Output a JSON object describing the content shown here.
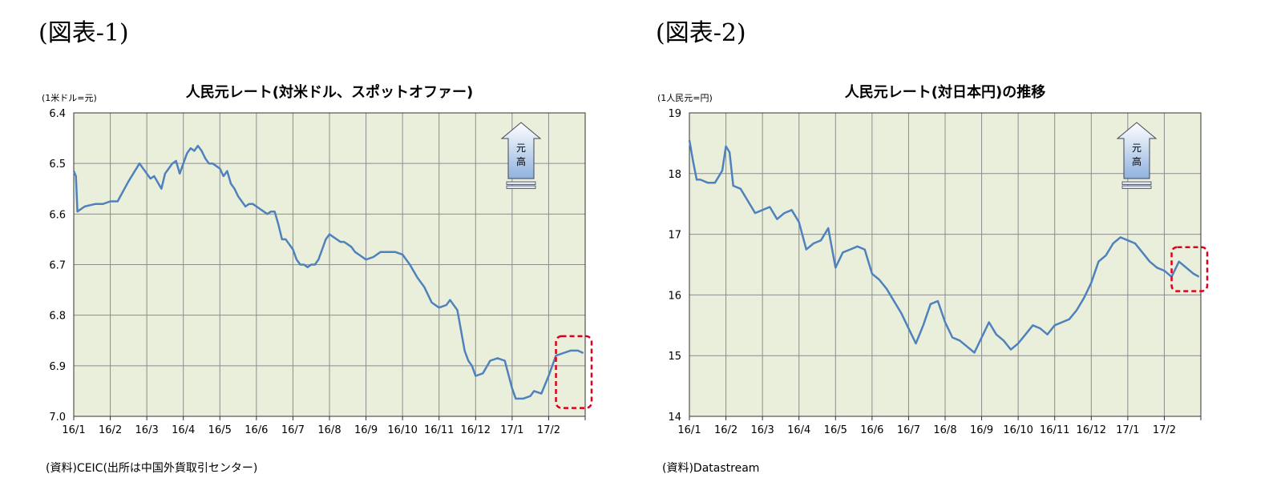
{
  "figures": [
    {
      "label": "(図表-1)",
      "source": "(資料)CEIC(出所は中国外貨取引センター)",
      "arrow_label": "元\n高",
      "chart_data": {
        "type": "line",
        "title": "人民元レート(対米ドル、スポットオファー)",
        "unit_label": "(1米ドル=元)",
        "y_inverted": true,
        "ylim": [
          6.4,
          7.0
        ],
        "y_ticks": [
          6.4,
          6.5,
          6.6,
          6.7,
          6.8,
          6.9,
          7.0
        ],
        "y_tick_labels": [
          "6.4",
          "6.5",
          "6.6",
          "6.7",
          "6.8",
          "6.9",
          "7.0"
        ],
        "x_ticks": [
          "16/1",
          "16/2",
          "16/3",
          "16/4",
          "16/5",
          "16/6",
          "16/7",
          "16/8",
          "16/9",
          "16/10",
          "16/11",
          "16/12",
          "17/1",
          "17/2"
        ],
        "grid": true,
        "highlight_box": true,
        "x_month_index": [
          0,
          0.06,
          0.1,
          0.3,
          0.6,
          0.8,
          1.0,
          1.2,
          1.5,
          1.8,
          2.0,
          2.1,
          2.2,
          2.4,
          2.5,
          2.6,
          2.7,
          2.8,
          2.9,
          3.0,
          3.1,
          3.2,
          3.3,
          3.4,
          3.5,
          3.6,
          3.7,
          3.8,
          3.9,
          4.0,
          4.1,
          4.2,
          4.3,
          4.4,
          4.5,
          4.6,
          4.7,
          4.8,
          4.9,
          5.0,
          5.1,
          5.2,
          5.3,
          5.4,
          5.5,
          5.6,
          5.7,
          5.8,
          5.9,
          6.0,
          6.1,
          6.2,
          6.3,
          6.4,
          6.5,
          6.6,
          6.7,
          6.8,
          6.9,
          7.0,
          7.1,
          7.2,
          7.3,
          7.4,
          7.5,
          7.6,
          7.7,
          7.8,
          7.9,
          8.0,
          8.2,
          8.4,
          8.6,
          8.8,
          9.0,
          9.2,
          9.4,
          9.6,
          9.8,
          10.0,
          10.2,
          10.3,
          10.5,
          10.6,
          10.7,
          10.8,
          10.9,
          11.0,
          11.2,
          11.4,
          11.6,
          11.8,
          12.0,
          12.1,
          12.3,
          12.5,
          12.6,
          12.8,
          13.0,
          13.2,
          13.4,
          13.6,
          13.8,
          13.95
        ],
        "values": [
          6.515,
          6.525,
          6.595,
          6.585,
          6.58,
          6.58,
          6.575,
          6.575,
          6.535,
          6.5,
          6.52,
          6.53,
          6.525,
          6.55,
          6.52,
          6.51,
          6.5,
          6.495,
          6.52,
          6.5,
          6.48,
          6.47,
          6.475,
          6.465,
          6.475,
          6.49,
          6.5,
          6.5,
          6.505,
          6.51,
          6.525,
          6.515,
          6.54,
          6.55,
          6.565,
          6.575,
          6.585,
          6.58,
          6.58,
          6.585,
          6.59,
          6.595,
          6.6,
          6.595,
          6.595,
          6.62,
          6.65,
          6.65,
          6.66,
          6.67,
          6.69,
          6.7,
          6.7,
          6.705,
          6.7,
          6.7,
          6.69,
          6.67,
          6.65,
          6.64,
          6.645,
          6.65,
          6.655,
          6.655,
          6.66,
          6.665,
          6.675,
          6.68,
          6.685,
          6.69,
          6.685,
          6.675,
          6.675,
          6.675,
          6.68,
          6.7,
          6.725,
          6.745,
          6.775,
          6.785,
          6.78,
          6.77,
          6.79,
          6.83,
          6.87,
          6.89,
          6.9,
          6.92,
          6.915,
          6.89,
          6.885,
          6.89,
          6.945,
          6.965,
          6.965,
          6.96,
          6.95,
          6.955,
          6.92,
          6.88,
          6.875,
          6.87,
          6.87,
          6.875
        ]
      }
    },
    {
      "label": "(図表-2)",
      "source": "(資料)Datastream",
      "arrow_label": "元\n高",
      "chart_data": {
        "type": "line",
        "title": "人民元レート(対日本円)の推移",
        "unit_label": "(1人民元=円)",
        "y_inverted": false,
        "ylim": [
          14,
          19
        ],
        "y_ticks": [
          14,
          15,
          16,
          17,
          18,
          19
        ],
        "y_tick_labels": [
          "14",
          "15",
          "16",
          "17",
          "18",
          "19"
        ],
        "x_ticks": [
          "16/1",
          "16/2",
          "16/3",
          "16/4",
          "16/5",
          "16/6",
          "16/7",
          "16/8",
          "16/9",
          "16/10",
          "16/11",
          "16/12",
          "17/1",
          "17/2"
        ],
        "grid": true,
        "highlight_box": true,
        "x_month_index": [
          0,
          0.1,
          0.2,
          0.3,
          0.5,
          0.7,
          0.8,
          0.9,
          1.0,
          1.1,
          1.2,
          1.4,
          1.6,
          1.8,
          2.0,
          2.2,
          2.4,
          2.6,
          2.8,
          3.0,
          3.2,
          3.4,
          3.6,
          3.8,
          4.0,
          4.2,
          4.4,
          4.6,
          4.8,
          5.0,
          5.2,
          5.4,
          5.6,
          5.8,
          6.0,
          6.2,
          6.4,
          6.6,
          6.8,
          7.0,
          7.2,
          7.4,
          7.6,
          7.8,
          8.0,
          8.2,
          8.4,
          8.6,
          8.8,
          9.0,
          9.2,
          9.4,
          9.6,
          9.8,
          10.0,
          10.2,
          10.4,
          10.6,
          10.8,
          11.0,
          11.2,
          11.4,
          11.6,
          11.8,
          12.0,
          12.2,
          12.4,
          12.6,
          12.8,
          13.0,
          13.2,
          13.4,
          13.6,
          13.8,
          13.95
        ],
        "values": [
          18.55,
          18.2,
          17.9,
          17.9,
          17.85,
          17.85,
          17.95,
          18.05,
          18.45,
          18.35,
          17.8,
          17.75,
          17.55,
          17.35,
          17.4,
          17.45,
          17.25,
          17.35,
          17.4,
          17.2,
          16.75,
          16.85,
          16.9,
          17.1,
          16.45,
          16.7,
          16.75,
          16.8,
          16.75,
          16.35,
          16.25,
          16.1,
          15.9,
          15.7,
          15.45,
          15.2,
          15.5,
          15.85,
          15.9,
          15.55,
          15.3,
          15.25,
          15.15,
          15.05,
          15.3,
          15.55,
          15.35,
          15.25,
          15.1,
          15.2,
          15.35,
          15.5,
          15.45,
          15.35,
          15.5,
          15.55,
          15.6,
          15.75,
          15.95,
          16.2,
          16.55,
          16.65,
          16.85,
          16.95,
          16.9,
          16.85,
          16.7,
          16.55,
          16.45,
          16.4,
          16.3,
          16.55,
          16.45,
          16.35,
          16.3
        ]
      }
    }
  ]
}
